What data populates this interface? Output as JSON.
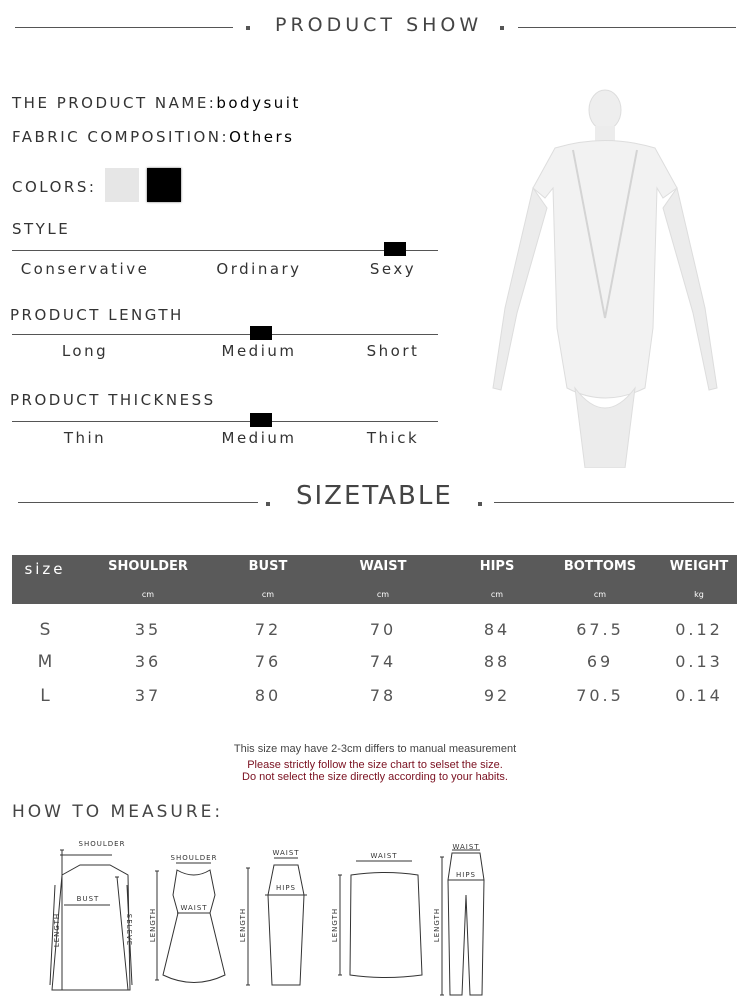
{
  "product_show": {
    "title": "PRODUCT SHOW"
  },
  "info": {
    "name_label": "THE PRODUCT NAME:",
    "name_value": "bodysuit",
    "fabric_label": "FABRIC COMPOSITION:",
    "fabric_value": "Others",
    "colors_label": "COLORS:",
    "colors": [
      "#e6e6e6",
      "#000000"
    ]
  },
  "attributes": [
    {
      "title": "STYLE",
      "options": [
        "Conservative",
        "Ordinary",
        "Sexy"
      ],
      "selected": "Sexy"
    },
    {
      "title": "PRODUCT LENGTH",
      "options": [
        "Long",
        "Medium",
        "Short"
      ],
      "selected": "Medium"
    },
    {
      "title": "PRODUCT THICKNESS",
      "options": [
        "Thin",
        "Medium",
        "Thick"
      ],
      "selected": "Medium"
    }
  ],
  "sizetable": {
    "title": "SIZETABLE",
    "columns": [
      {
        "name": "size",
        "unit": ""
      },
      {
        "name": "SHOULDER",
        "unit": "cm"
      },
      {
        "name": "BUST",
        "unit": "cm"
      },
      {
        "name": "WAIST",
        "unit": "cm"
      },
      {
        "name": "HIPS",
        "unit": "cm"
      },
      {
        "name": "BOTTOMS",
        "unit": "cm"
      },
      {
        "name": "WEIGHT",
        "unit": "kg"
      }
    ],
    "rows": [
      [
        "S",
        "35",
        "72",
        "70",
        "84",
        "67.5",
        "0.12"
      ],
      [
        "M",
        "36",
        "76",
        "74",
        "88",
        "69",
        "0.13"
      ],
      [
        "L",
        "37",
        "80",
        "78",
        "92",
        "70.5",
        "0.14"
      ]
    ],
    "note": "This size may have 2-3cm differs to manual measurement",
    "warning1": "Please strictly follow the size chart to selset the size.",
    "warning2": "Do not select the size directly according to your habits."
  },
  "measure": {
    "title": "HOW TO MEASURE:",
    "labels": {
      "shoulder": "SHOULDER",
      "bust": "BUST",
      "waist": "WAIST",
      "hips": "HIPS",
      "length": "LENGTH",
      "sleeve": "SELEVE"
    }
  }
}
